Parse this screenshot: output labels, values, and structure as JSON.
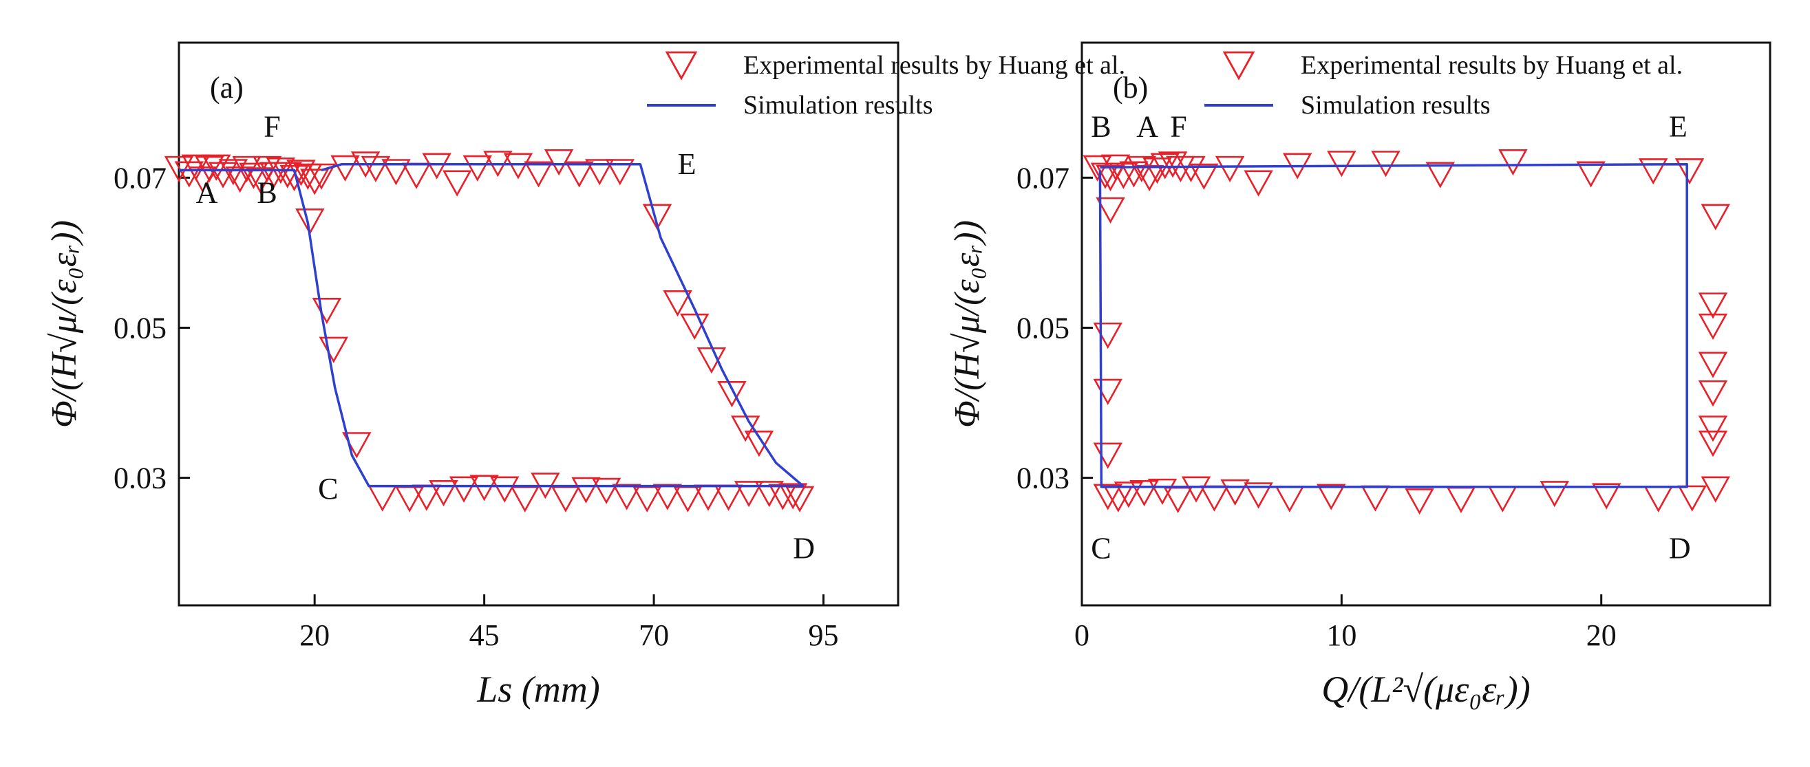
{
  "figure": {
    "ylabel_text": "Φ/(H√μ/(ε₀εᵣ))",
    "colors": {
      "experimental": "#e8202a",
      "simulation": "#2f3fcf",
      "axes": "#111111"
    }
  },
  "chart_data": [
    {
      "type": "scatter",
      "panel_label": "(a)",
      "xlabel": "Ls (mm)",
      "ylabel": "Φ/(H√μ/(ε₀εᵣ))",
      "xlim": [
        0,
        106
      ],
      "ylim": [
        0.013,
        0.088
      ],
      "xticks": [
        20,
        45,
        70,
        95
      ],
      "yticks": [
        0.03,
        0.05,
        0.07
      ],
      "ytick_labels": [
        "0.03",
        "0.05",
        "0.07"
      ],
      "legend": {
        "placement": "top-right",
        "entries": [
          "Experimental results by Huang et al.",
          "Simulation results"
        ]
      },
      "series": [
        {
          "name": "Experimental results by Huang et al.",
          "marker": "down-triangle",
          "color": "#e8202a",
          "points": [
            [
              0,
              0.0712
            ],
            [
              1.5,
              0.0705
            ],
            [
              2.5,
              0.0714
            ],
            [
              3.5,
              0.0698
            ],
            [
              4.5,
              0.0712
            ],
            [
              5.5,
              0.0714
            ],
            [
              6.5,
              0.0704
            ],
            [
              8,
              0.0708
            ],
            [
              9,
              0.0698
            ],
            [
              10,
              0.0712
            ],
            [
              11,
              0.0703
            ],
            [
              12,
              0.0697
            ],
            [
              13,
              0.0712
            ],
            [
              14,
              0.0704
            ],
            [
              15,
              0.071
            ],
            [
              16,
              0.0704
            ],
            [
              17,
              0.07
            ],
            [
              18,
              0.0707
            ],
            [
              19,
              0.0702
            ],
            [
              20,
              0.0695
            ],
            [
              21,
              0.0702
            ],
            [
              19.3,
              0.0642
            ],
            [
              21.8,
              0.0523
            ],
            [
              22.8,
              0.0471
            ],
            [
              26.2,
              0.0344
            ],
            [
              24.5,
              0.0713
            ],
            [
              27.5,
              0.0718
            ],
            [
              29,
              0.0712
            ],
            [
              32,
              0.0708
            ],
            [
              35,
              0.0703
            ],
            [
              38,
              0.0716
            ],
            [
              41,
              0.0693
            ],
            [
              44,
              0.0713
            ],
            [
              47,
              0.0719
            ],
            [
              50,
              0.0716
            ],
            [
              53,
              0.0705
            ],
            [
              56,
              0.0721
            ],
            [
              59,
              0.0705
            ],
            [
              62,
              0.0708
            ],
            [
              65,
              0.0708
            ],
            [
              70.5,
              0.0648
            ],
            [
              73.5,
              0.0533
            ],
            [
              76,
              0.0502
            ],
            [
              78.5,
              0.0457
            ],
            [
              81.5,
              0.0412
            ],
            [
              83.5,
              0.0366
            ],
            [
              85.5,
              0.0346
            ],
            [
              30,
              0.0273
            ],
            [
              34,
              0.0272
            ],
            [
              36.5,
              0.0274
            ],
            [
              39,
              0.028
            ],
            [
              42,
              0.0285
            ],
            [
              45,
              0.0287
            ],
            [
              48,
              0.0285
            ],
            [
              51,
              0.0272
            ],
            [
              54,
              0.029
            ],
            [
              57,
              0.0272
            ],
            [
              60,
              0.0284
            ],
            [
              63,
              0.0283
            ],
            [
              66,
              0.0275
            ],
            [
              69,
              0.0272
            ],
            [
              72,
              0.0275
            ],
            [
              75,
              0.0272
            ],
            [
              78,
              0.0274
            ],
            [
              81,
              0.0274
            ],
            [
              84,
              0.0279
            ],
            [
              87,
              0.0279
            ],
            [
              89,
              0.0275
            ],
            [
              90.5,
              0.0276
            ],
            [
              91.5,
              0.0272
            ]
          ]
        },
        {
          "name": "Simulation results",
          "line": true,
          "color": "#2f3fcf",
          "points": [
            [
              0,
              0.071
            ],
            [
              17,
              0.071
            ],
            [
              19,
              0.064
            ],
            [
              21,
              0.052
            ],
            [
              23,
              0.042
            ],
            [
              25.5,
              0.033
            ],
            [
              28,
              0.0289
            ],
            [
              92,
              0.0289
            ],
            [
              88,
              0.032
            ],
            [
              84,
              0.0375
            ],
            [
              80,
              0.0445
            ],
            [
              76,
              0.0525
            ],
            [
              71,
              0.062
            ],
            [
              68,
              0.0718
            ],
            [
              24,
              0.0718
            ],
            [
              21,
              0.071
            ]
          ]
        }
      ],
      "annotations": [
        {
          "text": "A",
          "x": 2.5,
          "y": 0.0667
        },
        {
          "text": "B",
          "x": 11.5,
          "y": 0.0667
        },
        {
          "text": "F",
          "x": 12.5,
          "y": 0.0755
        },
        {
          "text": "E",
          "x": 73.5,
          "y": 0.0705
        },
        {
          "text": "C",
          "x": 20.5,
          "y": 0.0272
        },
        {
          "text": "D",
          "x": 90.5,
          "y": 0.0193
        }
      ]
    },
    {
      "type": "scatter",
      "panel_label": "(b)",
      "xlabel": "Q/(L²√(με₀εᵣ))",
      "ylabel": "Φ/(H√μ/(ε₀εᵣ))",
      "xlim": [
        0,
        26.5
      ],
      "ylim": [
        0.013,
        0.088
      ],
      "xticks": [
        0,
        10,
        20
      ],
      "yticks": [
        0.03,
        0.05,
        0.07
      ],
      "ytick_labels": [
        "0.03",
        "0.05",
        "0.07"
      ],
      "legend": {
        "placement": "top-right",
        "entries": [
          "Experimental results by Huang et al.",
          "Simulation results"
        ]
      },
      "series": [
        {
          "name": "Experimental results by Huang et al.",
          "marker": "down-triangle",
          "color": "#e8202a",
          "points": [
            [
              0.6,
              0.0713
            ],
            [
              0.9,
              0.0703
            ],
            [
              1.1,
              0.07
            ],
            [
              1.3,
              0.0714
            ],
            [
              1.6,
              0.0703
            ],
            [
              2.0,
              0.0705
            ],
            [
              2.3,
              0.0712
            ],
            [
              2.6,
              0.07
            ],
            [
              2.9,
              0.071
            ],
            [
              3.2,
              0.0716
            ],
            [
              3.5,
              0.0718
            ],
            [
              3.8,
              0.0712
            ],
            [
              4.2,
              0.0712
            ],
            [
              4.7,
              0.0702
            ],
            [
              5.7,
              0.0712
            ],
            [
              6.8,
              0.0693
            ],
            [
              8.3,
              0.0716
            ],
            [
              10,
              0.0719
            ],
            [
              11.7,
              0.0719
            ],
            [
              13.8,
              0.0704
            ],
            [
              16.6,
              0.0721
            ],
            [
              19.6,
              0.0705
            ],
            [
              22,
              0.0709
            ],
            [
              23.4,
              0.0709
            ],
            [
              1.1,
              0.0657
            ],
            [
              1.0,
              0.049
            ],
            [
              1.0,
              0.0415
            ],
            [
              1.0,
              0.033
            ],
            [
              24.4,
              0.0648
            ],
            [
              24.3,
              0.053
            ],
            [
              24.3,
              0.0502
            ],
            [
              24.3,
              0.0451
            ],
            [
              24.3,
              0.0413
            ],
            [
              24.3,
              0.0366
            ],
            [
              24.3,
              0.0346
            ],
            [
              1.0,
              0.0275
            ],
            [
              1.4,
              0.0272
            ],
            [
              1.8,
              0.0278
            ],
            [
              2.4,
              0.028
            ],
            [
              3.1,
              0.0282
            ],
            [
              3.7,
              0.0271
            ],
            [
              4.4,
              0.0285
            ],
            [
              5.1,
              0.0273
            ],
            [
              5.9,
              0.0281
            ],
            [
              6.8,
              0.0277
            ],
            [
              8.0,
              0.0272
            ],
            [
              9.6,
              0.0275
            ],
            [
              11.3,
              0.0273
            ],
            [
              13.0,
              0.0269
            ],
            [
              14.6,
              0.0271
            ],
            [
              16.2,
              0.0272
            ],
            [
              18.2,
              0.0279
            ],
            [
              20.2,
              0.0276
            ],
            [
              22.2,
              0.0272
            ],
            [
              23.5,
              0.0273
            ],
            [
              24.4,
              0.0285
            ]
          ]
        },
        {
          "name": "Simulation results",
          "line": true,
          "color": "#2f3fcf",
          "points": [
            [
              0.7,
              0.071
            ],
            [
              0.75,
              0.0288
            ],
            [
              23.3,
              0.0288
            ],
            [
              23.3,
              0.0718
            ],
            [
              0.7,
              0.0714
            ]
          ]
        }
      ],
      "annotations": [
        {
          "text": "B",
          "x": 0.35,
          "y": 0.0755
        },
        {
          "text": "A",
          "x": 2.1,
          "y": 0.0755
        },
        {
          "text": "F",
          "x": 3.4,
          "y": 0.0755
        },
        {
          "text": "E",
          "x": 22.6,
          "y": 0.0755
        },
        {
          "text": "C",
          "x": 0.35,
          "y": 0.0193
        },
        {
          "text": "D",
          "x": 22.6,
          "y": 0.0193
        }
      ]
    }
  ]
}
